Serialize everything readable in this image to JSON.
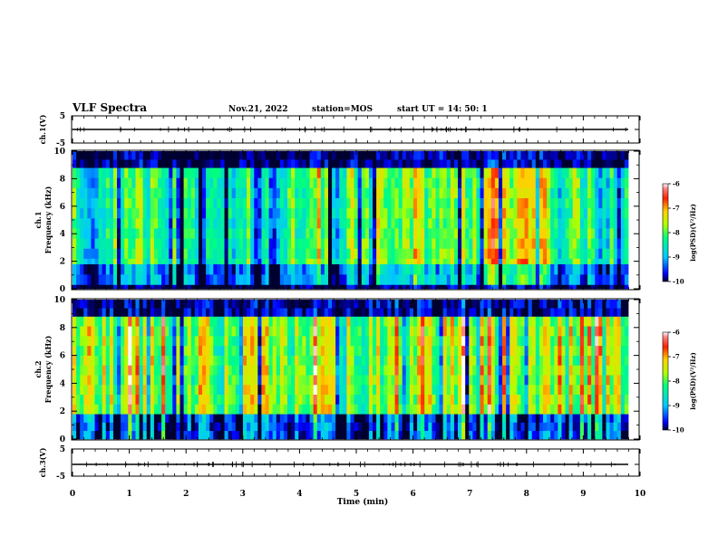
{
  "header": {
    "title": "VLF Spectra",
    "date": "Nov.21, 2022",
    "station": "station=MOS",
    "start_ut": "start  UT =   14: 50: 1"
  },
  "chart_data": [
    {
      "type": "line",
      "panel": "ch1-waveform",
      "ylabel": "ch.1(V)",
      "ylim": [
        -5,
        5
      ],
      "yticks": [
        "5",
        "-5"
      ],
      "xlim": [
        0,
        10
      ],
      "series": [
        {
          "x": [
            0,
            9.8
          ],
          "y": [
            0,
            0
          ]
        }
      ]
    },
    {
      "type": "heatmap",
      "panel": "ch1-spectrogram",
      "ylabel": "ch.1\nFrequency (kHz)",
      "ylim": [
        0,
        10
      ],
      "yticks": [
        "0",
        "2",
        "4",
        "6",
        "8",
        "10"
      ],
      "xlim": [
        0,
        9.8
      ],
      "z_label": "log(PSD)(V²/Hz)",
      "zlim": [
        -10,
        -6
      ],
      "colorbar_ticks": [
        "-6",
        "-7",
        "-8",
        "-9",
        "-10"
      ],
      "bands": [
        {
          "f": [
            0,
            0.3
          ],
          "level": -10
        },
        {
          "f": [
            0.3,
            1.8
          ],
          "level": -9.2
        },
        {
          "f": [
            1.8,
            2.2
          ],
          "level": -8.2
        },
        {
          "f": [
            2.2,
            8.8
          ],
          "level": -8.3
        },
        {
          "f": [
            8.8,
            10
          ],
          "level": -9.9
        }
      ],
      "enhanced_interval_min": [
        5.6,
        8.4
      ]
    },
    {
      "type": "heatmap",
      "panel": "ch2-spectrogram",
      "ylabel": "ch.2\nFrequency (kHz)",
      "ylim": [
        0,
        10
      ],
      "yticks": [
        "0",
        "2",
        "4",
        "6",
        "8",
        "10"
      ],
      "xlim": [
        0,
        9.8
      ],
      "z_label": "log(PSD)(V²/Hz)",
      "zlim": [
        -10,
        -6
      ],
      "colorbar_ticks": [
        "-6",
        "-7",
        "-8",
        "-9",
        "-10"
      ],
      "bands": [
        {
          "f": [
            0,
            1.8
          ],
          "level": -9.5
        },
        {
          "f": [
            1.8,
            8.8
          ],
          "level": -7.8
        },
        {
          "f": [
            8.8,
            10
          ],
          "level": -9.8
        }
      ]
    },
    {
      "type": "line",
      "panel": "ch3-waveform",
      "ylabel": "ch.3(V)",
      "ylim": [
        -5,
        5
      ],
      "yticks": [
        "5",
        "-5"
      ],
      "xlim": [
        0,
        10
      ],
      "xlabel": "Time (min)",
      "xticks": [
        "0",
        "1",
        "2",
        "3",
        "4",
        "5",
        "6",
        "7",
        "8",
        "9",
        "10"
      ],
      "series": [
        {
          "x": [
            0,
            9.8
          ],
          "y": [
            0,
            0
          ]
        }
      ]
    }
  ]
}
